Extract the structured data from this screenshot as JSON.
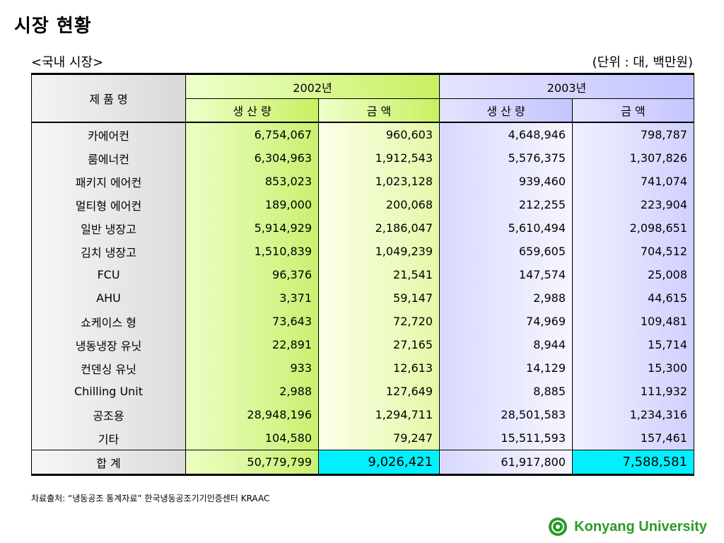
{
  "title": "시장 현황",
  "subtitle_left": "<국내 시장>",
  "subtitle_right": "(단위 : 대, 백만원)",
  "table": {
    "header": {
      "product": "제 품 명",
      "year1": "2002년",
      "year2": "2003년",
      "sub": [
        "생 산 량",
        "금  액",
        "생 산 량",
        "금 액"
      ]
    },
    "rows": [
      {
        "name": "카에어컨",
        "p2002": "6,754,067",
        "a2002": "960,603",
        "p2003": "4,648,946",
        "a2003": "798,787"
      },
      {
        "name": "룸에너컨",
        "p2002": "6,304,963",
        "a2002": "1,912,543",
        "p2003": "5,576,375",
        "a2003": "1,307,826"
      },
      {
        "name": "패키지 에어컨",
        "p2002": "853,023",
        "a2002": "1,023,128",
        "p2003": "939,460",
        "a2003": "741,074"
      },
      {
        "name": "멀티형 에어컨",
        "p2002": "189,000",
        "a2002": "200,068",
        "p2003": "212,255",
        "a2003": "223,904"
      },
      {
        "name": "일반 냉장고",
        "p2002": "5,914,929",
        "a2002": "2,186,047",
        "p2003": "5,610,494",
        "a2003": "2,098,651"
      },
      {
        "name": "김치 냉장고",
        "p2002": "1,510,839",
        "a2002": "1,049,239",
        "p2003": "659,605",
        "a2003": "704,512"
      },
      {
        "name": "FCU",
        "p2002": "96,376",
        "a2002": "21,541",
        "p2003": "147,574",
        "a2003": "25,008"
      },
      {
        "name": "AHU",
        "p2002": "3,371",
        "a2002": "59,147",
        "p2003": "2,988",
        "a2003": "44,615"
      },
      {
        "name": "쇼케이스 형",
        "p2002": "73,643",
        "a2002": "72,720",
        "p2003": "74,969",
        "a2003": "109,481"
      },
      {
        "name": "냉동냉장 유닛",
        "p2002": "22,891",
        "a2002": "27,165",
        "p2003": "8,944",
        "a2003": "15,714"
      },
      {
        "name": "컨덴싱 유닛",
        "p2002": "933",
        "a2002": "12,613",
        "p2003": "14,129",
        "a2003": "15,300"
      },
      {
        "name": "Chilling Unit",
        "p2002": "2,988",
        "a2002": "127,649",
        "p2003": "8,885",
        "a2003": "111,932"
      },
      {
        "name": "공조용",
        "p2002": "28,948,196",
        "a2002": "1,294,711",
        "p2003": "28,501,583",
        "a2003": "1,234,316"
      },
      {
        "name": "기타",
        "p2002": "104,580",
        "a2002": "79,247",
        "p2003": "15,511,593",
        "a2003": "157,461"
      }
    ],
    "total": {
      "name": "합 계",
      "p2002": "50,779,799",
      "a2002": "9,026,421",
      "p2003": "61,917,800",
      "a2003": "7,588,581"
    }
  },
  "source": "차료출처: “냉동공조 통계자료” 한국냉동공조기기인증센터 KRAAC",
  "footer": {
    "university": "Konyang University"
  },
  "colors": {
    "accent_green": "#2a9a2a",
    "highlight_cyan": "#00f0ff"
  }
}
